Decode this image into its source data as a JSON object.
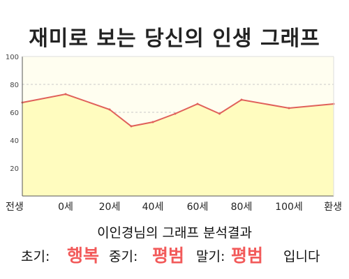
{
  "chart_data": {
    "type": "area",
    "title": "재미로 보는 당신의 인생 그래프",
    "categories": [
      "전생",
      "0세",
      "20세",
      "40세",
      "60세",
      "80세",
      "100세",
      "환생"
    ],
    "x": [
      -1,
      0,
      20,
      40,
      60,
      80,
      100,
      120
    ],
    "points": [
      {
        "x": -1,
        "y": 67
      },
      {
        "x": 0,
        "y": 73
      },
      {
        "x": 20,
        "y": 62
      },
      {
        "x": 30,
        "y": 50
      },
      {
        "x": 40,
        "y": 53
      },
      {
        "x": 50,
        "y": 59
      },
      {
        "x": 60,
        "y": 66
      },
      {
        "x": 70,
        "y": 59
      },
      {
        "x": 80,
        "y": 69
      },
      {
        "x": 100,
        "y": 63
      },
      {
        "x": 120,
        "y": 66
      }
    ],
    "yticks": [
      20,
      40,
      60,
      80,
      100
    ],
    "ylim": [
      0,
      100
    ],
    "grid": true,
    "colors": {
      "line": "#e0605a",
      "fill": "#fffcbf",
      "plot_bg": "#fffef0",
      "grid": "#c8c8c8",
      "axis": "#555555"
    }
  },
  "summary": {
    "subtitle": "이인경님의 그래프 분석결과",
    "early_label": "초기:",
    "early_value": "행복",
    "mid_label": "중기:",
    "mid_value": "평범",
    "late_label": "말기:",
    "late_value": "평범",
    "ending": "입니다"
  }
}
